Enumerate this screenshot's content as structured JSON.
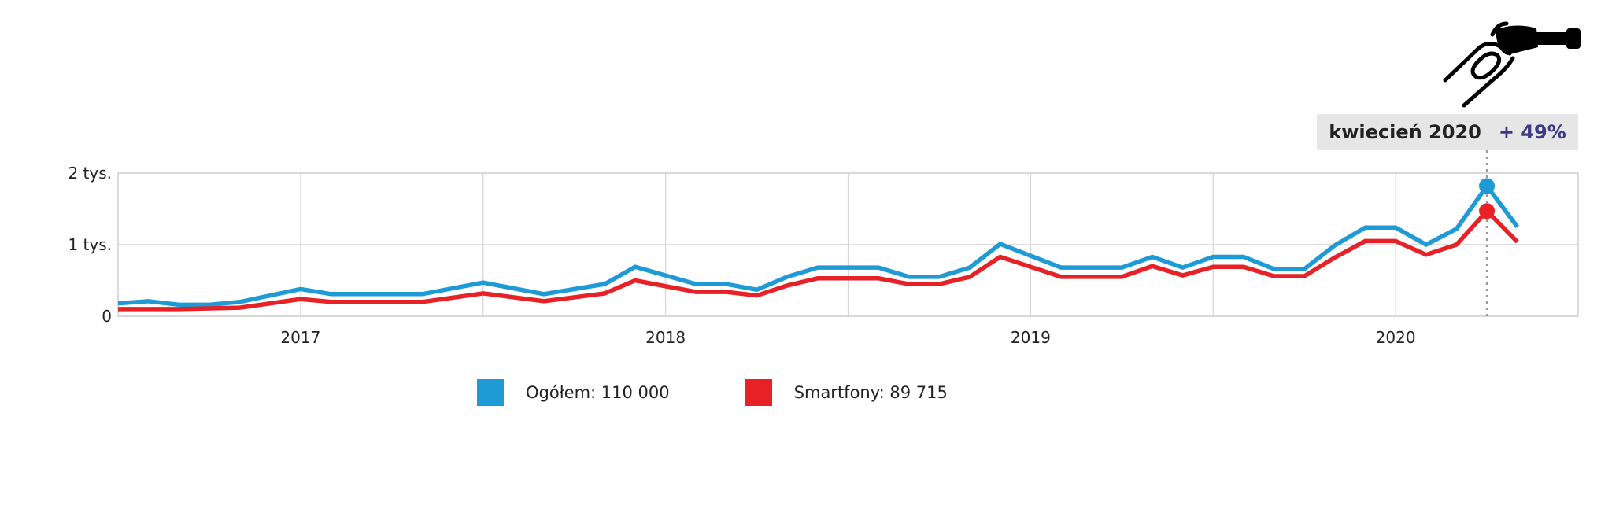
{
  "callout": {
    "date": "kwiecień 2020",
    "change": "+ 49%"
  },
  "legend": [
    {
      "label": "Ogółem: 110 000",
      "color": "#1e9ad6"
    },
    {
      "label": "Smartfony: 89 715",
      "color": "#e82127"
    }
  ],
  "icon": "fuel-nozzle-hand-icon",
  "chart_data": {
    "type": "line",
    "title": "",
    "xlabel": "",
    "ylabel": "",
    "x_start": "2016-07",
    "x_end": "2020-07",
    "x_ticks": [
      "2017",
      "2018",
      "2019",
      "2020"
    ],
    "y_ticks": [
      "0",
      "1 tys.",
      "2 tys."
    ],
    "ylim": [
      0,
      2000
    ],
    "grid": true,
    "highlight": {
      "x": "2020-04",
      "label": "kwiecień 2020",
      "change": "+ 49%"
    },
    "series": [
      {
        "name": "Ogółem: 110 000",
        "color": "#1e9ad6",
        "points": [
          [
            "2016-07",
            180
          ],
          [
            "2016-08",
            210
          ],
          [
            "2016-09",
            160
          ],
          [
            "2016-10",
            160
          ],
          [
            "2016-11",
            200
          ],
          [
            "2017-01",
            380
          ],
          [
            "2017-02",
            310
          ],
          [
            "2017-03",
            310
          ],
          [
            "2017-04",
            310
          ],
          [
            "2017-05",
            310
          ],
          [
            "2017-07",
            470
          ],
          [
            "2017-09",
            310
          ],
          [
            "2017-11",
            450
          ],
          [
            "2017-12",
            690
          ],
          [
            "2018-02",
            450
          ],
          [
            "2018-03",
            450
          ],
          [
            "2018-04",
            370
          ],
          [
            "2018-05",
            550
          ],
          [
            "2018-06",
            680
          ],
          [
            "2018-07",
            680
          ],
          [
            "2018-08",
            680
          ],
          [
            "2018-09",
            550
          ],
          [
            "2018-10",
            550
          ],
          [
            "2018-11",
            680
          ],
          [
            "2018-12",
            1010
          ],
          [
            "2019-02",
            680
          ],
          [
            "2019-03",
            680
          ],
          [
            "2019-04",
            680
          ],
          [
            "2019-05",
            830
          ],
          [
            "2019-06",
            680
          ],
          [
            "2019-07",
            830
          ],
          [
            "2019-08",
            830
          ],
          [
            "2019-09",
            660
          ],
          [
            "2019-10",
            660
          ],
          [
            "2019-11",
            990
          ],
          [
            "2019-12",
            1240
          ],
          [
            "2020-01",
            1240
          ],
          [
            "2020-02",
            1000
          ],
          [
            "2020-03",
            1220
          ],
          [
            "2020-04",
            1820
          ],
          [
            "2020-05",
            1250
          ]
        ]
      },
      {
        "name": "Smartfony: 89 715",
        "color": "#e82127",
        "points": [
          [
            "2016-07",
            100
          ],
          [
            "2016-08",
            100
          ],
          [
            "2016-09",
            100
          ],
          [
            "2016-10",
            110
          ],
          [
            "2016-11",
            120
          ],
          [
            "2017-01",
            240
          ],
          [
            "2017-02",
            200
          ],
          [
            "2017-03",
            200
          ],
          [
            "2017-04",
            200
          ],
          [
            "2017-05",
            200
          ],
          [
            "2017-07",
            320
          ],
          [
            "2017-09",
            210
          ],
          [
            "2017-11",
            320
          ],
          [
            "2017-12",
            500
          ],
          [
            "2018-02",
            340
          ],
          [
            "2018-03",
            340
          ],
          [
            "2018-04",
            290
          ],
          [
            "2018-05",
            430
          ],
          [
            "2018-06",
            530
          ],
          [
            "2018-07",
            530
          ],
          [
            "2018-08",
            530
          ],
          [
            "2018-09",
            450
          ],
          [
            "2018-10",
            450
          ],
          [
            "2018-11",
            550
          ],
          [
            "2018-12",
            830
          ],
          [
            "2019-02",
            550
          ],
          [
            "2019-03",
            550
          ],
          [
            "2019-04",
            550
          ],
          [
            "2019-05",
            700
          ],
          [
            "2019-06",
            570
          ],
          [
            "2019-07",
            690
          ],
          [
            "2019-08",
            690
          ],
          [
            "2019-09",
            560
          ],
          [
            "2019-10",
            560
          ],
          [
            "2019-11",
            820
          ],
          [
            "2019-12",
            1050
          ],
          [
            "2020-01",
            1050
          ],
          [
            "2020-02",
            860
          ],
          [
            "2020-03",
            1000
          ],
          [
            "2020-04",
            1470
          ],
          [
            "2020-05",
            1040
          ]
        ]
      }
    ]
  }
}
